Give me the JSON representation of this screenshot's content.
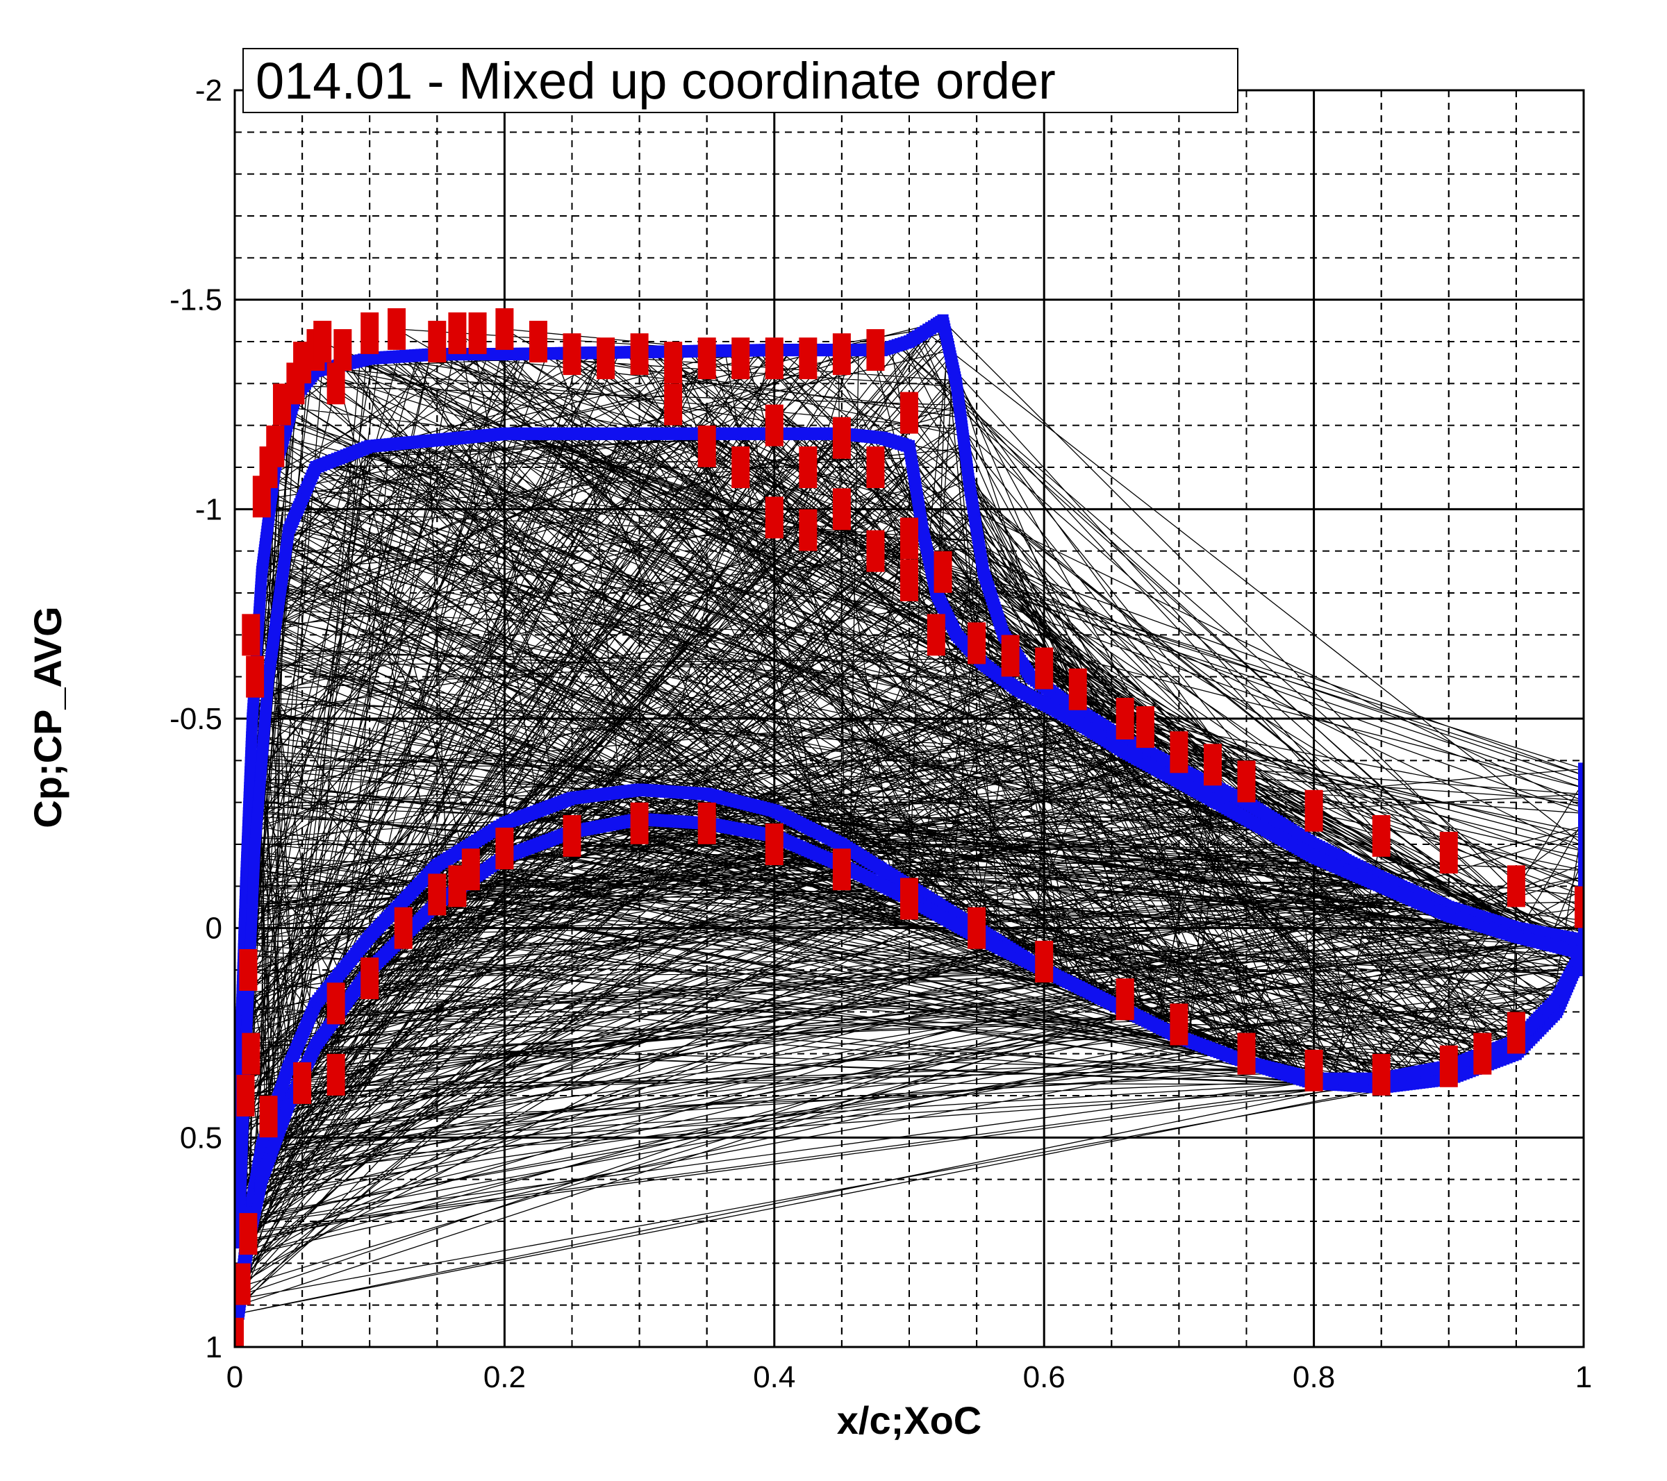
{
  "chart_data": {
    "type": "scatter",
    "title": "014.01 - Mixed up coordinate order",
    "xlabel": "x/c;XoC",
    "ylabel": "Cp;CP_AVG",
    "xlim": [
      0,
      1
    ],
    "ylim": [
      1,
      -2
    ],
    "y_reversed": true,
    "grid": {
      "major": true,
      "minor": true,
      "minor_style": "dashed"
    },
    "x_ticks": [
      "0",
      "0.2",
      "0.4",
      "0.6",
      "0.8",
      "1"
    ],
    "y_ticks": [
      "-2",
      "-1.5",
      "-1",
      "-0.5",
      "0",
      "0.5",
      "1"
    ],
    "colors": {
      "lines": "#000000",
      "computed": "#1010f0",
      "experiment": "#dd0000",
      "background": "#ffffff"
    },
    "series": [
      {
        "style": "thin black lines connecting points in scrambled order",
        "color": "#000000"
      },
      {
        "style": "blue square markers",
        "color": "#1010f0",
        "curves": [
          {
            "x": [
              0.0,
              0.004,
              0.008,
              0.013,
              0.02,
              0.03,
              0.045,
              0.06,
              0.1,
              0.15,
              0.2,
              0.3,
              0.4,
              0.45,
              0.48,
              0.5,
              0.51,
              0.52,
              0.525
            ],
            "y": [
              0.7,
              0.3,
              -0.1,
              -0.5,
              -0.85,
              -1.1,
              -1.27,
              -1.33,
              -1.36,
              -1.37,
              -1.37,
              -1.375,
              -1.38,
              -1.38,
              -1.38,
              -1.4,
              -1.42,
              -1.44,
              -1.45
            ]
          },
          {
            "x": [
              0.525,
              0.535,
              0.545,
              0.555,
              0.57,
              0.59,
              0.62,
              0.66,
              0.7,
              0.75,
              0.8,
              0.85,
              0.9,
              0.95,
              1.0
            ],
            "y": [
              -1.45,
              -1.3,
              -1.05,
              -0.85,
              -0.7,
              -0.6,
              -0.53,
              -0.45,
              -0.38,
              -0.3,
              -0.2,
              -0.12,
              -0.05,
              0.0,
              0.03
            ]
          },
          {
            "x": [
              0.003,
              0.008,
              0.015,
              0.025,
              0.04,
              0.06,
              0.1,
              0.2,
              0.3,
              0.4,
              0.45,
              0.48,
              0.5,
              0.505,
              0.51,
              0.52,
              0.535,
              0.555,
              0.58,
              0.62,
              0.66,
              0.7,
              0.75,
              0.8,
              0.85,
              0.9,
              0.95,
              1.0
            ],
            "y": [
              0.75,
              0.3,
              -0.2,
              -0.6,
              -0.95,
              -1.1,
              -1.15,
              -1.18,
              -1.18,
              -1.18,
              -1.18,
              -1.17,
              -1.15,
              -1.05,
              -0.95,
              -0.8,
              -0.7,
              -0.63,
              -0.57,
              -0.5,
              -0.42,
              -0.35,
              -0.26,
              -0.17,
              -0.1,
              -0.03,
              0.02,
              0.06
            ]
          },
          {
            "x": [
              0.003,
              0.01,
              0.02,
              0.04,
              0.06,
              0.1,
              0.15,
              0.2,
              0.25,
              0.3,
              0.35,
              0.4,
              0.45,
              0.5,
              0.55,
              0.6,
              0.65,
              0.7,
              0.75,
              0.8,
              0.85,
              0.9,
              0.95,
              0.98,
              1.0
            ],
            "y": [
              0.9,
              0.7,
              0.52,
              0.33,
              0.18,
              0.02,
              -0.15,
              -0.25,
              -0.31,
              -0.33,
              -0.32,
              -0.28,
              -0.2,
              -0.1,
              0.0,
              0.1,
              0.18,
              0.26,
              0.32,
              0.37,
              0.38,
              0.36,
              0.3,
              0.2,
              0.05
            ]
          },
          {
            "x": [
              0.003,
              0.01,
              0.02,
              0.04,
              0.06,
              0.1,
              0.15,
              0.2,
              0.25,
              0.3,
              0.35,
              0.4,
              0.45,
              0.5,
              0.55,
              0.6,
              0.65,
              0.7,
              0.75,
              0.8,
              0.85,
              0.9,
              0.95,
              0.98,
              1.0
            ],
            "y": [
              0.92,
              0.75,
              0.6,
              0.42,
              0.28,
              0.1,
              -0.06,
              -0.17,
              -0.23,
              -0.26,
              -0.25,
              -0.22,
              -0.15,
              -0.07,
              0.02,
              0.1,
              0.18,
              0.26,
              0.32,
              0.36,
              0.36,
              0.33,
              0.27,
              0.17,
              0.05
            ]
          },
          {
            "x": [
              1.0,
              1.0,
              1.0
            ],
            "y": [
              -0.38,
              -0.1,
              0.1
            ]
          }
        ]
      },
      {
        "style": "red rectangular markers",
        "color": "#dd0000",
        "points": [
          [
            0.0,
            0.98
          ],
          [
            0.005,
            0.85
          ],
          [
            0.01,
            0.73
          ],
          [
            0.008,
            0.4
          ],
          [
            0.012,
            0.3
          ],
          [
            0.01,
            0.1
          ],
          [
            0.015,
            -0.6
          ],
          [
            0.012,
            -0.7
          ],
          [
            0.02,
            -1.03
          ],
          [
            0.025,
            -1.1
          ],
          [
            0.03,
            -1.15
          ],
          [
            0.035,
            -1.25
          ],
          [
            0.045,
            -1.3
          ],
          [
            0.05,
            -1.35
          ],
          [
            0.06,
            -1.38
          ],
          [
            0.065,
            -1.4
          ],
          [
            0.075,
            -1.3
          ],
          [
            0.08,
            -1.38
          ],
          [
            0.1,
            -1.42
          ],
          [
            0.12,
            -1.43
          ],
          [
            0.15,
            -1.4
          ],
          [
            0.165,
            -1.42
          ],
          [
            0.18,
            -1.42
          ],
          [
            0.2,
            -1.43
          ],
          [
            0.225,
            -1.4
          ],
          [
            0.25,
            -1.37
          ],
          [
            0.275,
            -1.36
          ],
          [
            0.3,
            -1.37
          ],
          [
            0.325,
            -1.35
          ],
          [
            0.35,
            -1.36
          ],
          [
            0.375,
            -1.36
          ],
          [
            0.4,
            -1.36
          ],
          [
            0.425,
            -1.36
          ],
          [
            0.45,
            -1.37
          ],
          [
            0.475,
            -1.38
          ],
          [
            0.325,
            -1.25
          ],
          [
            0.35,
            -1.15
          ],
          [
            0.375,
            -1.1
          ],
          [
            0.4,
            -1.2
          ],
          [
            0.4,
            -0.98
          ],
          [
            0.425,
            -1.1
          ],
          [
            0.425,
            -0.95
          ],
          [
            0.45,
            -1.17
          ],
          [
            0.45,
            -1.0
          ],
          [
            0.475,
            -1.1
          ],
          [
            0.475,
            -0.9
          ],
          [
            0.5,
            -1.23
          ],
          [
            0.5,
            -0.93
          ],
          [
            0.5,
            -0.83
          ],
          [
            0.52,
            -0.7
          ],
          [
            0.525,
            -0.85
          ],
          [
            0.55,
            -0.68
          ],
          [
            0.575,
            -0.65
          ],
          [
            0.6,
            -0.62
          ],
          [
            0.625,
            -0.57
          ],
          [
            0.66,
            -0.5
          ],
          [
            0.675,
            -0.48
          ],
          [
            0.7,
            -0.42
          ],
          [
            0.725,
            -0.39
          ],
          [
            0.75,
            -0.35
          ],
          [
            0.8,
            -0.28
          ],
          [
            0.85,
            -0.22
          ],
          [
            0.9,
            -0.18
          ],
          [
            0.95,
            -0.1
          ],
          [
            1.0,
            -0.05
          ],
          [
            0.025,
            0.45
          ],
          [
            0.05,
            0.37
          ],
          [
            0.075,
            0.35
          ],
          [
            0.075,
            0.18
          ],
          [
            0.1,
            0.12
          ],
          [
            0.125,
            0.0
          ],
          [
            0.15,
            -0.08
          ],
          [
            0.165,
            -0.1
          ],
          [
            0.175,
            -0.14
          ],
          [
            0.2,
            -0.19
          ],
          [
            0.25,
            -0.22
          ],
          [
            0.3,
            -0.25
          ],
          [
            0.35,
            -0.25
          ],
          [
            0.4,
            -0.2
          ],
          [
            0.45,
            -0.14
          ],
          [
            0.5,
            -0.07
          ],
          [
            0.55,
            0.0
          ],
          [
            0.6,
            0.08
          ],
          [
            0.66,
            0.17
          ],
          [
            0.7,
            0.23
          ],
          [
            0.75,
            0.3
          ],
          [
            0.8,
            0.34
          ],
          [
            0.85,
            0.35
          ],
          [
            0.9,
            0.33
          ],
          [
            0.925,
            0.3
          ],
          [
            0.95,
            0.25
          ]
        ]
      }
    ]
  }
}
